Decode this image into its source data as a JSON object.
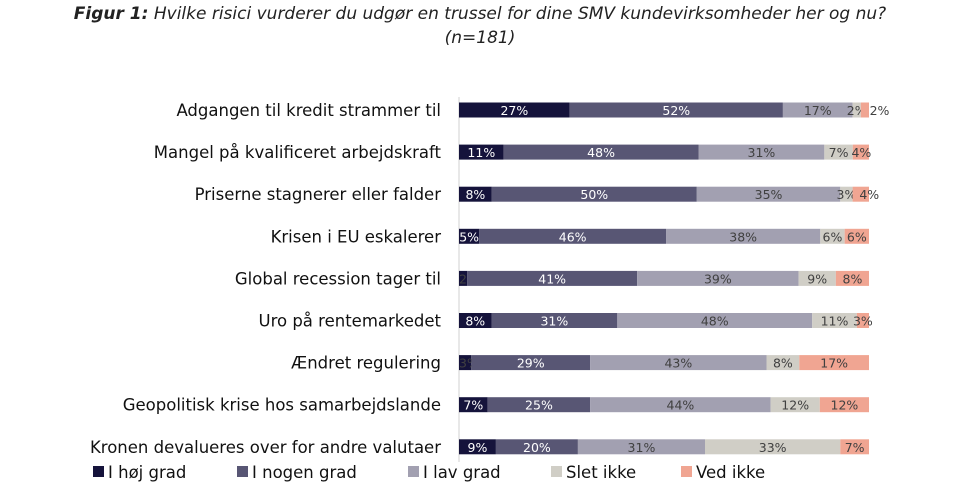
{
  "chart_data": {
    "type": "bar",
    "orientation": "horizontal-stacked-100",
    "title_prefix": "Figur 1:",
    "title": "Hvilke risici vurderer du udgør en trussel for dine SMV kundevirksomheder her og nu?",
    "subtitle": "(n=181)",
    "categories": [
      "Adgangen til kredit strammer til",
      "Mangel på kvalificeret arbejdskraft",
      "Priserne stagnerer eller falder",
      "Krisen i EU eskalerer",
      "Global recession tager til",
      "Uro på rentemarkedet",
      "Ændret regulering",
      "Geopolitisk krise hos samarbejdslande",
      "Kronen devalueres over for andre valutaer"
    ],
    "series": [
      {
        "name": "I høj grad",
        "color": "#15133b",
        "label_color": "#ffffff",
        "values": [
          27,
          11,
          8,
          5,
          2,
          8,
          3,
          7,
          9
        ]
      },
      {
        "name": "I nogen grad",
        "color": "#585674",
        "label_color": "#ffffff",
        "values": [
          52,
          48,
          50,
          46,
          41,
          31,
          29,
          25,
          20
        ]
      },
      {
        "name": "I lav grad",
        "color": "#a2a0b1",
        "label_color": "#404040",
        "values": [
          17,
          31,
          35,
          38,
          39,
          48,
          43,
          44,
          31
        ]
      },
      {
        "name": "Slet ikke",
        "color": "#d0cec6",
        "label_color": "#404040",
        "values": [
          2,
          7,
          3,
          6,
          9,
          11,
          8,
          12,
          33
        ]
      },
      {
        "name": "Ved ikke",
        "color": "#f0a592",
        "label_color": "#404040",
        "values": [
          2,
          4,
          4,
          6,
          8,
          3,
          17,
          12,
          7
        ]
      }
    ],
    "value_format": "percent",
    "xlim": [
      0,
      100
    ],
    "legend_position": "bottom",
    "grid": false
  }
}
